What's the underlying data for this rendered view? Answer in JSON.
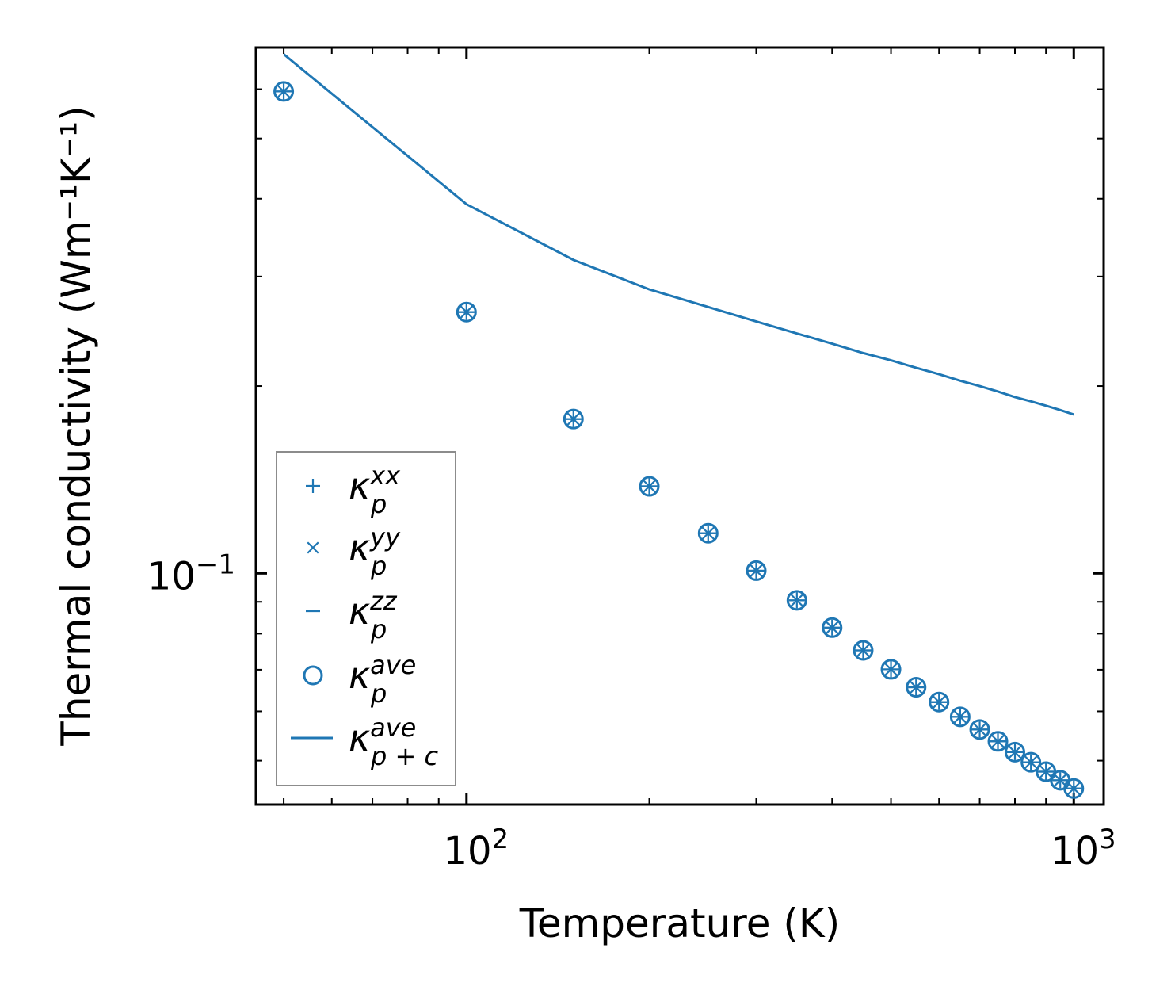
{
  "chart_data": {
    "type": "scatter",
    "xscale": "log",
    "yscale": "log",
    "xlim": [
      45,
      1120
    ],
    "ylim": [
      0.0425,
      0.7
    ],
    "xlabel": "Temperature (K)",
    "ylabel": "Thermal conductivity (Wm⁻¹K⁻¹)",
    "x_tick_labels": [
      {
        "value": 100,
        "base": "10",
        "exp": "2"
      },
      {
        "value": 1000,
        "base": "10",
        "exp": "3"
      }
    ],
    "y_tick_labels": [
      {
        "value": 0.1,
        "base": "10",
        "exp": "−1"
      }
    ],
    "x": [
      50,
      100,
      150,
      200,
      250,
      300,
      350,
      400,
      450,
      500,
      550,
      600,
      650,
      700,
      750,
      800,
      850,
      900,
      950,
      1000
    ],
    "series": [
      {
        "name": "κ_p^xx",
        "marker": "plus",
        "values": [
          0.595,
          0.263,
          0.177,
          0.138,
          0.116,
          0.101,
          0.0905,
          0.0818,
          0.0752,
          0.0701,
          0.0656,
          0.0621,
          0.0588,
          0.0561,
          0.0537,
          0.0516,
          0.0497,
          0.048,
          0.0465,
          0.0451
        ]
      },
      {
        "name": "κ_p^yy",
        "marker": "x",
        "values": [
          0.595,
          0.263,
          0.177,
          0.138,
          0.116,
          0.101,
          0.0905,
          0.0818,
          0.0752,
          0.0701,
          0.0656,
          0.0621,
          0.0588,
          0.0561,
          0.0537,
          0.0516,
          0.0497,
          0.048,
          0.0465,
          0.0451
        ]
      },
      {
        "name": "κ_p^zz",
        "marker": "hline",
        "values": [
          0.595,
          0.263,
          0.177,
          0.138,
          0.116,
          0.101,
          0.0905,
          0.0818,
          0.0752,
          0.0701,
          0.0656,
          0.0621,
          0.0588,
          0.0561,
          0.0537,
          0.0516,
          0.0497,
          0.048,
          0.0465,
          0.0451
        ]
      },
      {
        "name": "κ_p^ave",
        "marker": "circle",
        "values": [
          0.595,
          0.263,
          0.177,
          0.138,
          0.116,
          0.101,
          0.0905,
          0.0818,
          0.0752,
          0.0701,
          0.0656,
          0.0621,
          0.0588,
          0.0561,
          0.0537,
          0.0516,
          0.0497,
          0.048,
          0.0465,
          0.0451
        ]
      },
      {
        "name": "κ_{p+c}^ave",
        "marker": "line",
        "values": [
          0.683,
          0.392,
          0.319,
          0.286,
          0.268,
          0.254,
          0.243,
          0.234,
          0.226,
          0.22,
          0.214,
          0.209,
          0.204,
          0.2,
          0.196,
          0.192,
          0.189,
          0.186,
          0.183,
          0.18
        ]
      }
    ],
    "legend": {
      "placement": "lower-left",
      "entries": [
        {
          "marker": "plus",
          "symbol": "κ",
          "sub": "p",
          "sup": "xx"
        },
        {
          "marker": "x",
          "symbol": "κ",
          "sub": "p",
          "sup": "yy"
        },
        {
          "marker": "hline",
          "symbol": "κ",
          "sub": "p",
          "sup": "zz"
        },
        {
          "marker": "circle",
          "symbol": "κ",
          "sub": "p",
          "sup": "ave"
        },
        {
          "marker": "line",
          "symbol": "κ",
          "sub": "p + c",
          "sup": "ave"
        }
      ]
    },
    "grid": false,
    "color": "#1f77b4"
  }
}
